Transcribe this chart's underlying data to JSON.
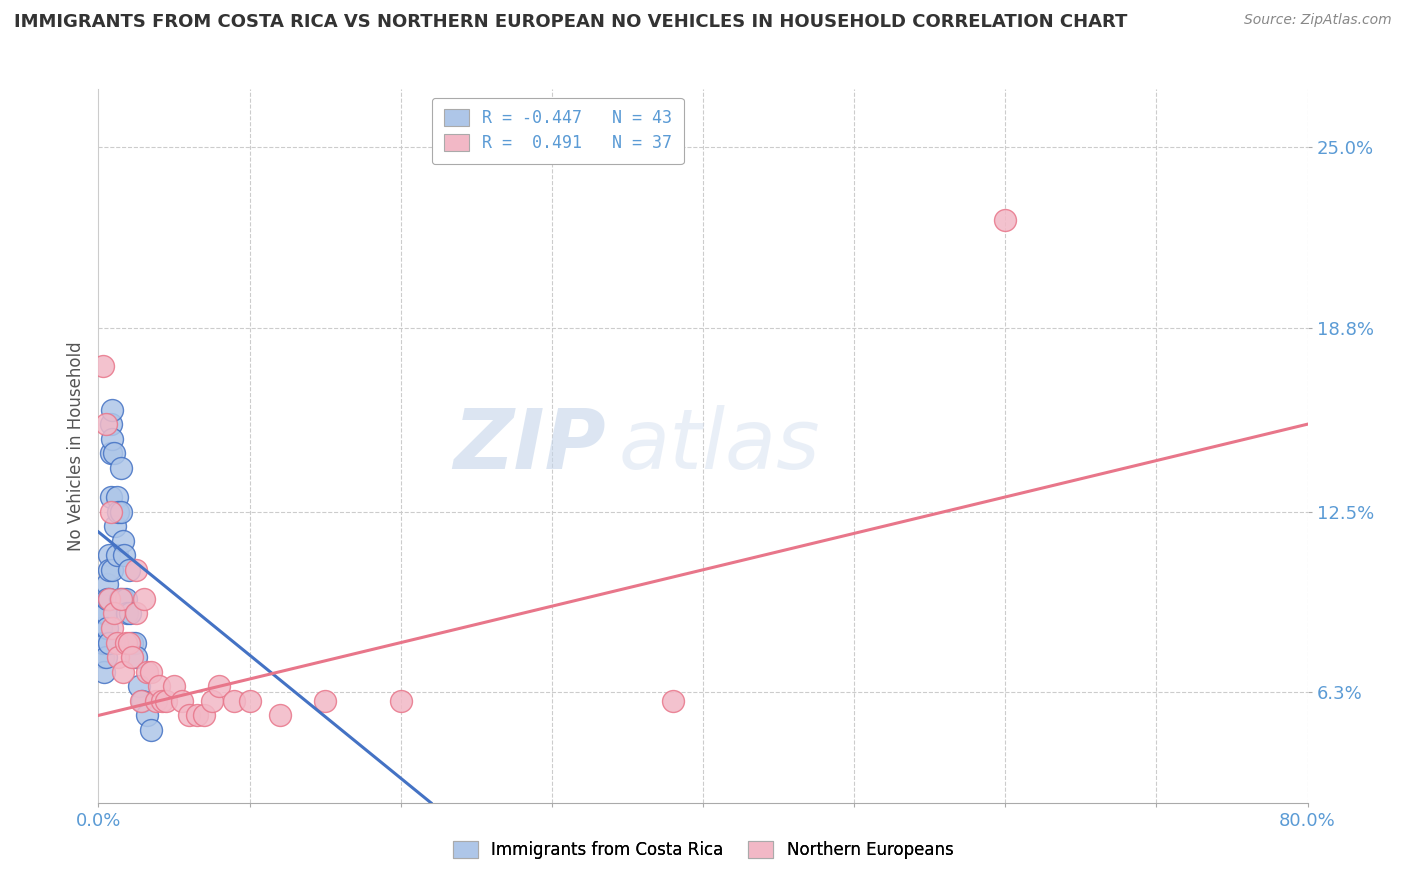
{
  "title": "IMMIGRANTS FROM COSTA RICA VS NORTHERN EUROPEAN NO VEHICLES IN HOUSEHOLD CORRELATION CHART",
  "source": "Source: ZipAtlas.com",
  "ylabel": "No Vehicles in Household",
  "ytick_labels": [
    "6.3%",
    "12.5%",
    "18.8%",
    "25.0%"
  ],
  "ytick_values": [
    0.063,
    0.125,
    0.188,
    0.25
  ],
  "xlim": [
    0.0,
    0.8
  ],
  "ylim": [
    0.025,
    0.27
  ],
  "legend_entries": [
    {
      "label": "R = -0.447   N = 43",
      "color": "#a8c4e0"
    },
    {
      "label": "R =  0.491   N = 37",
      "color": "#f0b8c8"
    }
  ],
  "legend_bottom": [
    "Immigrants from Costa Rica",
    "Northern Europeans"
  ],
  "blue_scatter_x": [
    0.002,
    0.003,
    0.003,
    0.004,
    0.004,
    0.005,
    0.005,
    0.005,
    0.006,
    0.006,
    0.006,
    0.007,
    0.007,
    0.007,
    0.007,
    0.008,
    0.008,
    0.008,
    0.009,
    0.009,
    0.009,
    0.01,
    0.011,
    0.012,
    0.012,
    0.013,
    0.014,
    0.015,
    0.015,
    0.016,
    0.016,
    0.017,
    0.018,
    0.019,
    0.02,
    0.021,
    0.022,
    0.024,
    0.025,
    0.027,
    0.029,
    0.032,
    0.035
  ],
  "blue_scatter_y": [
    0.085,
    0.075,
    0.08,
    0.09,
    0.07,
    0.09,
    0.08,
    0.075,
    0.1,
    0.095,
    0.085,
    0.11,
    0.105,
    0.095,
    0.08,
    0.155,
    0.145,
    0.13,
    0.16,
    0.15,
    0.105,
    0.145,
    0.12,
    0.13,
    0.11,
    0.125,
    0.095,
    0.14,
    0.125,
    0.115,
    0.095,
    0.11,
    0.095,
    0.09,
    0.105,
    0.09,
    0.08,
    0.08,
    0.075,
    0.065,
    0.06,
    0.055,
    0.05
  ],
  "pink_scatter_x": [
    0.003,
    0.005,
    0.007,
    0.008,
    0.009,
    0.01,
    0.012,
    0.013,
    0.015,
    0.016,
    0.018,
    0.02,
    0.022,
    0.025,
    0.028,
    0.03,
    0.032,
    0.035,
    0.038,
    0.04,
    0.042,
    0.045,
    0.05,
    0.055,
    0.06,
    0.065,
    0.07,
    0.075,
    0.08,
    0.09,
    0.1,
    0.12,
    0.15,
    0.2,
    0.38,
    0.6,
    0.025
  ],
  "pink_scatter_y": [
    0.175,
    0.155,
    0.095,
    0.125,
    0.085,
    0.09,
    0.08,
    0.075,
    0.095,
    0.07,
    0.08,
    0.08,
    0.075,
    0.09,
    0.06,
    0.095,
    0.07,
    0.07,
    0.06,
    0.065,
    0.06,
    0.06,
    0.065,
    0.06,
    0.055,
    0.055,
    0.055,
    0.06,
    0.065,
    0.06,
    0.06,
    0.055,
    0.06,
    0.06,
    0.06,
    0.225,
    0.105
  ],
  "blue_line_x": [
    0.0,
    0.22
  ],
  "blue_line_y": [
    0.118,
    0.025
  ],
  "pink_line_x": [
    0.0,
    0.8
  ],
  "pink_line_y": [
    0.055,
    0.155
  ],
  "blue_color": "#4472C4",
  "pink_color": "#E8768A",
  "blue_fill": "#aec6e8",
  "pink_fill": "#f2b8c6",
  "background_color": "#ffffff",
  "grid_color": "#cccccc",
  "title_color": "#333333",
  "axis_label_color": "#5b9bd5"
}
